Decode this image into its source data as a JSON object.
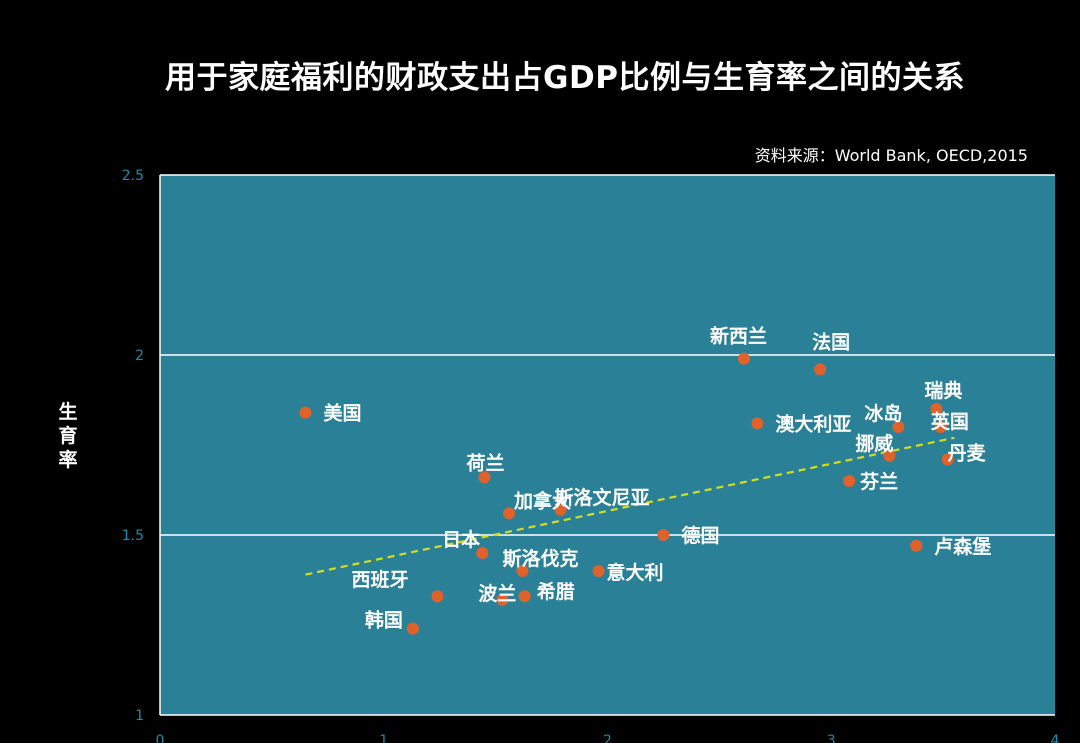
{
  "title": "用于家庭福利的财政支出占GDP比例与生育率之间的关系",
  "source": "资料来源：World Bank,  OECD,2015",
  "colors": {
    "background": "#000000",
    "plot_background": "#2a8097",
    "gridline": "#ffffff",
    "point": "#e0622a",
    "trendline": "#d4dd1a",
    "tick": "#1f8aa3"
  },
  "chart_data": {
    "type": "scatter",
    "title": "用于家庭福利的财政支出占GDP比例与生育率之间的关系",
    "xlabel": "",
    "ylabel": "生育率",
    "xlim": [
      0,
      4
    ],
    "ylim": [
      1,
      2.5
    ],
    "xticks": [
      0,
      1,
      2,
      3,
      4
    ],
    "yticks": [
      1,
      1.5,
      2,
      2.5
    ],
    "grid": "horizontal",
    "points": [
      {
        "label": "美国",
        "x": 0.65,
        "y": 1.84
      },
      {
        "label": "韩国",
        "x": 1.13,
        "y": 1.24
      },
      {
        "label": "西班牙",
        "x": 1.24,
        "y": 1.33
      },
      {
        "label": "日本",
        "x": 1.44,
        "y": 1.45
      },
      {
        "label": "荷兰",
        "x": 1.45,
        "y": 1.66
      },
      {
        "label": "波兰",
        "x": 1.53,
        "y": 1.32
      },
      {
        "label": "加拿大",
        "x": 1.56,
        "y": 1.56
      },
      {
        "label": "斯洛伐克",
        "x": 1.62,
        "y": 1.4
      },
      {
        "label": "希腊",
        "x": 1.63,
        "y": 1.33
      },
      {
        "label": "斯洛文尼亚",
        "x": 1.79,
        "y": 1.57
      },
      {
        "label": "意大利",
        "x": 1.96,
        "y": 1.4
      },
      {
        "label": "德国",
        "x": 2.25,
        "y": 1.5
      },
      {
        "label": "新西兰",
        "x": 2.61,
        "y": 1.99
      },
      {
        "label": "澳大利亚",
        "x": 2.67,
        "y": 1.81
      },
      {
        "label": "法国",
        "x": 2.95,
        "y": 1.96
      },
      {
        "label": "芬兰",
        "x": 3.08,
        "y": 1.65
      },
      {
        "label": "挪威",
        "x": 3.26,
        "y": 1.72
      },
      {
        "label": "冰岛",
        "x": 3.3,
        "y": 1.8
      },
      {
        "label": "卢森堡",
        "x": 3.38,
        "y": 1.47
      },
      {
        "label": "瑞典",
        "x": 3.47,
        "y": 1.85
      },
      {
        "label": "英国",
        "x": 3.49,
        "y": 1.8
      },
      {
        "label": "丹麦",
        "x": 3.52,
        "y": 1.71
      }
    ],
    "trendline": {
      "style": "dashed",
      "x": [
        0.65,
        3.55
      ],
      "y": [
        1.39,
        1.77
      ]
    }
  }
}
